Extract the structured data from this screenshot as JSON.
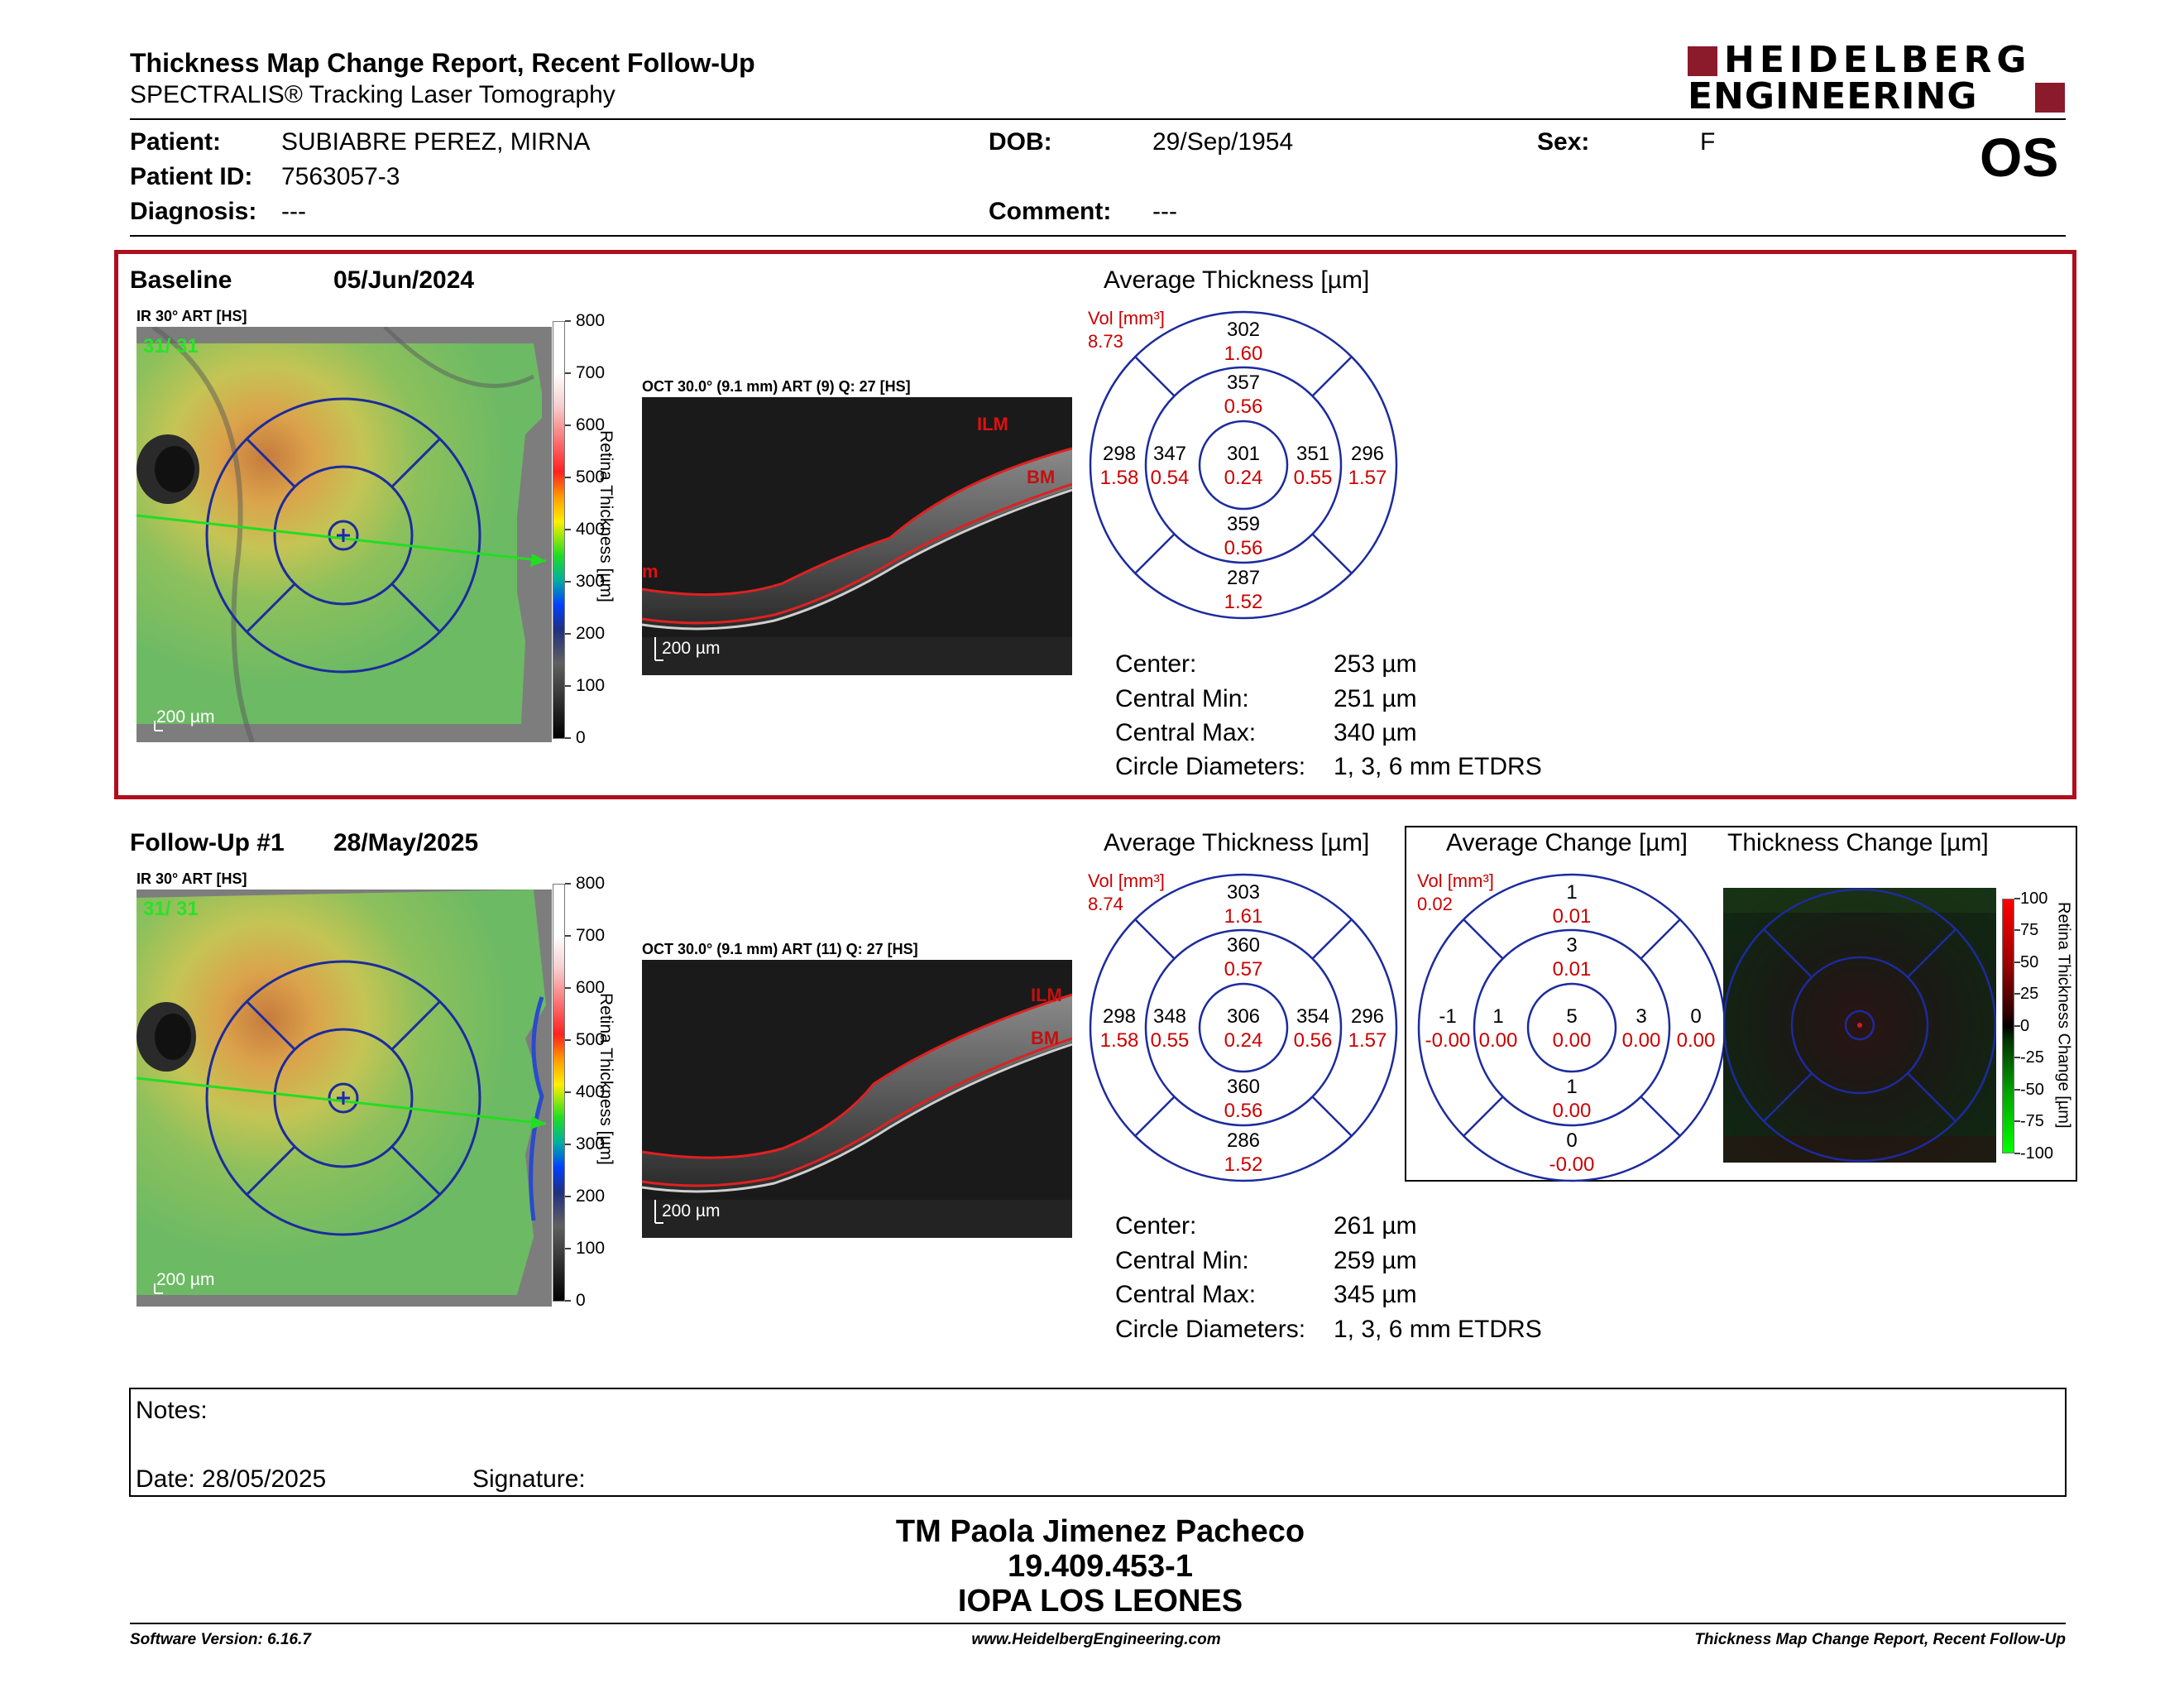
{
  "header": {
    "title": "Thickness Map Change Report, Recent Follow-Up",
    "subtitle": "SPECTRALIS® Tracking Laser Tomography",
    "logo_line1": "HEIDELBERG",
    "logo_line2": "ENGINEERING",
    "eye": "OS",
    "brand_color": "#8b1a2b"
  },
  "patient": {
    "patient_label": "Patient:",
    "patient_value": "SUBIABRE PEREZ, MIRNA",
    "id_label": "Patient ID:",
    "id_value": "7563057-3",
    "diagnosis_label": "Diagnosis:",
    "diagnosis_value": "---",
    "dob_label": "DOB:",
    "dob_value": "29/Sep/1954",
    "comment_label": "Comment:",
    "comment_value": "---",
    "sex_label": "Sex:",
    "sex_value": "F"
  },
  "baseline": {
    "label": "Baseline",
    "date": "05/Jun/2024",
    "ir_label": "IR 30° ART [HS]",
    "ir_overlay": "31/ 31",
    "scale_bar": "200 µm",
    "oct_label": "OCT 30.0° (9.1 mm) ART (9) Q: 27 [HS]",
    "oct_scale": "200 µm",
    "ilm": "ILM",
    "bm": "BM",
    "m": "m",
    "colorbar_title": "Retina Thickness [µm]",
    "colorbar_ticks": [
      "800",
      "700",
      "600",
      "500",
      "400",
      "300",
      "200",
      "100",
      "0"
    ],
    "avg_title": "Average Thickness [µm]",
    "vol_label": "Vol [mm³]",
    "vol_value": "8.73",
    "grid": {
      "outer_sup": [
        "302",
        "1.60"
      ],
      "inner_sup": [
        "357",
        "0.56"
      ],
      "outer_temp": [
        "298",
        "1.58"
      ],
      "inner_temp": [
        "347",
        "0.54"
      ],
      "center": [
        "301",
        "0.24"
      ],
      "inner_nas": [
        "351",
        "0.55"
      ],
      "outer_nas": [
        "296",
        "1.57"
      ],
      "inner_inf": [
        "359",
        "0.56"
      ],
      "outer_inf": [
        "287",
        "1.52"
      ]
    },
    "stats": [
      {
        "label": "Center:",
        "value": "253 µm"
      },
      {
        "label": "Central Min:",
        "value": "251 µm"
      },
      {
        "label": "Central Max:",
        "value": "340 µm"
      },
      {
        "label": "Circle Diameters:",
        "value": "1, 3, 6 mm ETDRS"
      }
    ]
  },
  "followup": {
    "label": "Follow-Up #1",
    "date": "28/May/2025",
    "ir_label": "IR 30° ART [HS]",
    "ir_overlay": "31/ 31",
    "scale_bar": "200 µm",
    "oct_label": "OCT 30.0° (9.1 mm) ART (11) Q: 27 [HS]",
    "oct_scale": "200 µm",
    "ilm": "ILM",
    "bm": "BM",
    "colorbar_title": "Retina Thickness [µm]",
    "colorbar_ticks": [
      "800",
      "700",
      "600",
      "500",
      "400",
      "300",
      "200",
      "100",
      "0"
    ],
    "avg_title": "Average Thickness [µm]",
    "vol_label": "Vol [mm³]",
    "vol_value": "8.74",
    "grid": {
      "outer_sup": [
        "303",
        "1.61"
      ],
      "inner_sup": [
        "360",
        "0.57"
      ],
      "outer_temp": [
        "298",
        "1.58"
      ],
      "inner_temp": [
        "348",
        "0.55"
      ],
      "center": [
        "306",
        "0.24"
      ],
      "inner_nas": [
        "354",
        "0.56"
      ],
      "outer_nas": [
        "296",
        "1.57"
      ],
      "inner_inf": [
        "360",
        "0.56"
      ],
      "outer_inf": [
        "286",
        "1.52"
      ]
    },
    "stats": [
      {
        "label": "Center:",
        "value": "261 µm"
      },
      {
        "label": "Central Min:",
        "value": "259 µm"
      },
      {
        "label": "Central Max:",
        "value": "345 µm"
      },
      {
        "label": "Circle Diameters:",
        "value": "1, 3, 6 mm ETDRS"
      }
    ]
  },
  "change": {
    "avg_title": "Average Change [µm]",
    "map_title": "Thickness Change [µm]",
    "vol_label": "Vol [mm³]",
    "vol_value": "0.02",
    "grid": {
      "outer_sup": [
        "1",
        "0.01"
      ],
      "inner_sup": [
        "3",
        "0.01"
      ],
      "outer_temp": [
        "-1",
        "-0.00"
      ],
      "inner_temp": [
        "1",
        "0.00"
      ],
      "center": [
        "5",
        "0.00"
      ],
      "inner_nas": [
        "3",
        "0.00"
      ],
      "outer_nas": [
        "0",
        "0.00"
      ],
      "inner_inf": [
        "1",
        "0.00"
      ],
      "outer_inf": [
        "0",
        "-0.00"
      ]
    },
    "colorbar_title": "Retina Thickness Change [µm]",
    "colorbar_ticks": [
      "100",
      "75",
      "50",
      "25",
      "0",
      "-25",
      "-50",
      "-75",
      "-100"
    ]
  },
  "notes": {
    "notes_label": "Notes:",
    "date_label": "Date: 28/05/2025",
    "signature_label": "Signature:"
  },
  "signer": {
    "name": "TM Paola Jimenez Pacheco",
    "id": "19.409.453-1",
    "org": "IOPA LOS LEONES"
  },
  "footer": {
    "version": "Software Version: 6.16.7",
    "url": "www.HeidelbergEngineering.com",
    "report": "Thickness Map Change Report, Recent Follow-Up"
  }
}
